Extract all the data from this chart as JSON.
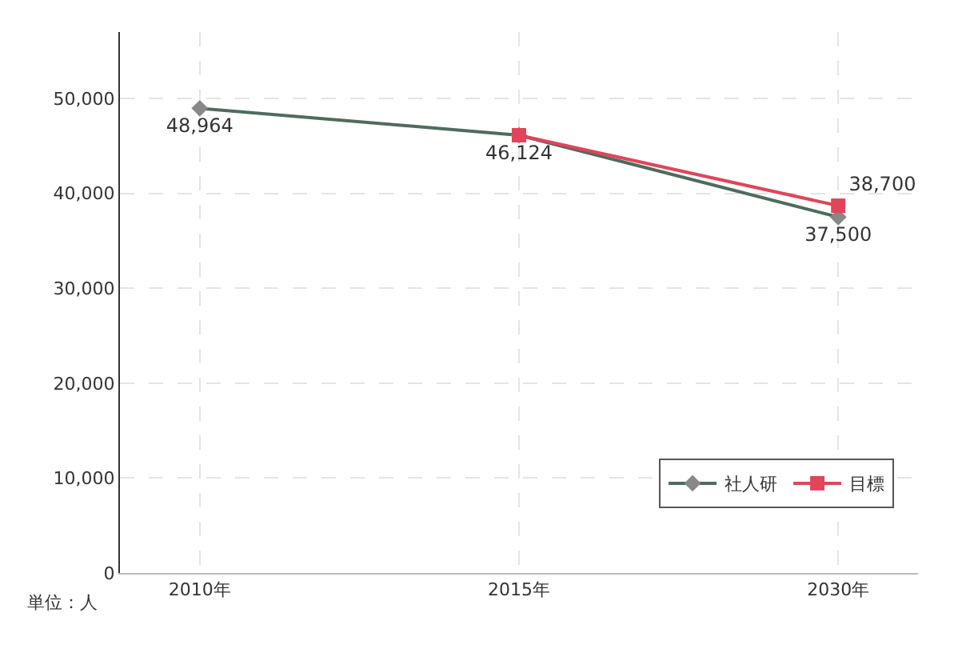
{
  "chart_data": {
    "type": "line",
    "categories": [
      "2010年",
      "2015年",
      "2030年"
    ],
    "series": [
      {
        "name": "社人研",
        "color": "#4f6b5c",
        "values": [
          48964,
          46124,
          37500
        ],
        "value_labels": [
          "48,964",
          "46,124",
          "37,500"
        ],
        "marker": "diamond"
      },
      {
        "name": "目標",
        "color": "#e0455a",
        "values": [
          null,
          46124,
          38700
        ],
        "value_labels": [
          null,
          null,
          "38,700"
        ],
        "marker": "square"
      }
    ],
    "ylim": [
      0,
      57000
    ],
    "yticks": [
      {
        "value": 0,
        "label": "0"
      },
      {
        "value": 10000,
        "label": "10,000"
      },
      {
        "value": 20000,
        "label": "20,000"
      },
      {
        "value": 30000,
        "label": "30,000"
      },
      {
        "value": 40000,
        "label": "40,000"
      },
      {
        "value": 50000,
        "label": "50,000"
      }
    ],
    "grid": true,
    "legend": "bottom right",
    "line_style": "solid",
    "annotations": [
      "単位：人"
    ]
  }
}
